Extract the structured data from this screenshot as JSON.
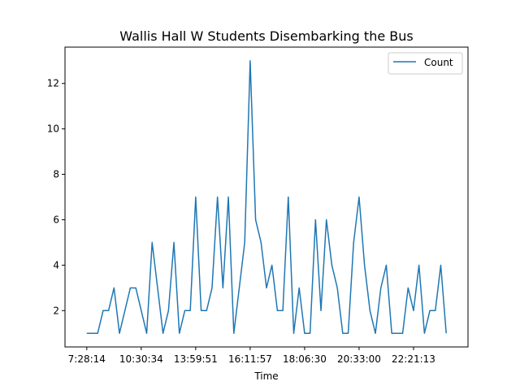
{
  "chart_data": {
    "type": "line",
    "title": "Wallis Hall W Students Disembarking the Bus",
    "xlabel": "Time",
    "ylabel": "",
    "x_tick_labels": [
      "7:28:14",
      "10:30:34",
      "13:59:51",
      "16:11:57",
      "18:06:30",
      "20:33:00",
      "22:21:13"
    ],
    "x_tick_indices": [
      0,
      10,
      20,
      30,
      40,
      50,
      60
    ],
    "y_ticks": [
      2,
      4,
      6,
      8,
      10,
      12
    ],
    "ylim": [
      0.4,
      13.6
    ],
    "xlim": [
      -4,
      70
    ],
    "grid": false,
    "legend_position": "top-right",
    "color": "#1f77b4",
    "series": [
      {
        "name": "Count",
        "values": [
          1,
          1,
          1,
          2,
          2,
          3,
          1,
          2,
          3,
          3,
          2,
          1,
          5,
          3,
          1,
          2,
          5,
          1,
          2,
          2,
          7,
          2,
          2,
          3,
          7,
          3,
          7,
          1,
          3,
          5,
          13,
          6,
          5,
          3,
          4,
          2,
          2,
          7,
          1,
          3,
          1,
          1,
          6,
          2,
          6,
          4,
          3,
          1,
          1,
          5,
          7,
          4,
          2,
          1,
          3,
          4,
          1,
          1,
          1,
          3,
          2,
          4,
          1,
          2,
          2,
          4,
          1
        ]
      }
    ]
  }
}
